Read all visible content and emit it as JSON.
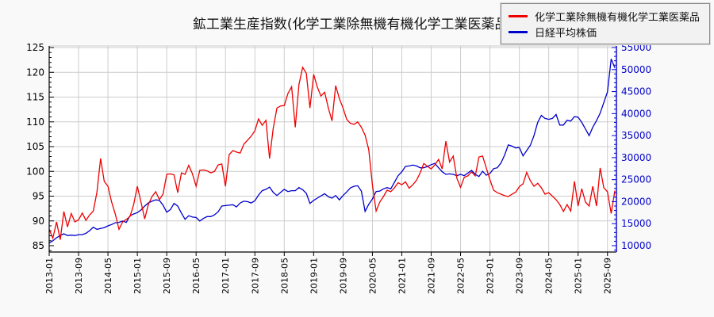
{
  "title": "鉱工業生産指数(化学工業除無機有機化学工業医薬品)",
  "legend": {
    "items": [
      {
        "label": "化学工業除無機有機化学工業医薬品",
        "color": "#ee0000"
      },
      {
        "label": "日経平均株価",
        "color": "#0000cc"
      }
    ]
  },
  "chart_data": {
    "type": "line",
    "x_interval": "monthly",
    "x_start": "2013-01",
    "x_end": "2025-11",
    "x_tick_every_months": 8,
    "x_tick_labels": [
      "2013-01",
      "2013-09",
      "2014-05",
      "2015-01",
      "2015-09",
      "2016-05",
      "2017-01",
      "2017-09",
      "2018-05",
      "2019-01",
      "2019-09",
      "2020-05",
      "2021-01",
      "2021-09",
      "2022-05",
      "2023-01",
      "2023-09",
      "2024-05",
      "2025-01",
      "2025-09"
    ],
    "left_axis": {
      "min": 85,
      "max": 125,
      "major_step": 5,
      "minor_step": 1,
      "ticks": [
        85,
        90,
        95,
        100,
        105,
        110,
        115,
        120,
        125
      ],
      "color": "#000000"
    },
    "right_axis": {
      "min": 10000,
      "max": 55000,
      "major_step": 5000,
      "minor_step": 1000,
      "ticks": [
        10000,
        15000,
        20000,
        25000,
        30000,
        35000,
        40000,
        45000,
        50000,
        55000
      ],
      "color": "#0000cc"
    },
    "grid": true,
    "grid_color": "#cccccc",
    "legend_position": "top-right",
    "series": [
      {
        "name": "化学工業除無機有機化学工業医薬品",
        "axis": "left",
        "color": "#ee0000",
        "values": [
          88.3,
          86.5,
          89.8,
          86.2,
          91.9,
          88.8,
          91.5,
          89.8,
          90.2,
          91.6,
          90.1,
          91.2,
          92.0,
          95.8,
          102.6,
          98.0,
          97.0,
          93.8,
          91.4,
          88.3,
          89.8,
          90.3,
          90.9,
          93.3,
          97.0,
          93.8,
          90.4,
          93.3,
          94.9,
          95.9,
          94.3,
          95.4,
          99.4,
          99.5,
          99.3,
          95.7,
          99.7,
          99.4,
          101.2,
          99.5,
          97.0,
          100.2,
          100.3,
          100.1,
          99.7,
          100.0,
          101.3,
          101.5,
          97.0,
          103.4,
          104.2,
          103.9,
          103.7,
          105.5,
          106.3,
          107.1,
          108.2,
          110.6,
          109.3,
          110.3,
          102.6,
          108.7,
          112.8,
          113.2,
          113.3,
          115.7,
          117.1,
          108.9,
          117.5,
          121.0,
          119.8,
          112.8,
          119.6,
          117.0,
          115.2,
          116.0,
          112.8,
          110.2,
          117.3,
          114.7,
          112.8,
          110.5,
          109.7,
          109.5,
          110.0,
          108.9,
          107.3,
          104.4,
          97.3,
          92.0,
          93.8,
          94.9,
          96.2,
          95.9,
          96.7,
          97.7,
          97.3,
          97.9,
          96.6,
          97.3,
          98.2,
          99.7,
          101.6,
          101.0,
          100.5,
          101.3,
          102.4,
          100.5,
          106.1,
          101.9,
          103.1,
          98.6,
          96.8,
          98.8,
          99.1,
          99.9,
          99.1,
          102.9,
          103.1,
          100.7,
          98.3,
          96.2,
          95.7,
          95.4,
          95.1,
          94.9,
          95.4,
          95.8,
          96.9,
          97.5,
          99.8,
          98.1,
          97.0,
          97.6,
          96.7,
          95.4,
          95.7,
          95.0,
          94.3,
          93.3,
          91.9,
          93.3,
          92.0,
          98.0,
          93.0,
          96.5,
          93.8,
          93.0,
          97.0,
          93.0,
          100.7,
          96.7,
          95.9,
          91.5,
          96.1
        ]
      },
      {
        "name": "日経平均株価",
        "axis": "right",
        "color": "#0000cc",
        "values": [
          10600,
          11100,
          11800,
          12300,
          12700,
          12300,
          12400,
          12300,
          12500,
          12500,
          12800,
          13400,
          14200,
          13700,
          13900,
          14100,
          14500,
          14800,
          15200,
          15300,
          15600,
          15300,
          16800,
          17200,
          17500,
          18100,
          19000,
          19700,
          20100,
          20400,
          20300,
          19200,
          17600,
          18200,
          19600,
          19000,
          17400,
          16000,
          16800,
          16500,
          16400,
          15600,
          16200,
          16600,
          16600,
          17000,
          17700,
          19000,
          19100,
          19200,
          19300,
          18800,
          19700,
          20100,
          20000,
          19700,
          20200,
          21500,
          22500,
          22800,
          23300,
          22100,
          21400,
          22100,
          22800,
          22300,
          22500,
          22500,
          23200,
          22700,
          21900,
          19600,
          20300,
          20800,
          21300,
          21800,
          21100,
          20800,
          21400,
          20400,
          21400,
          22200,
          23100,
          23500,
          23600,
          22400,
          17800,
          19400,
          20600,
          22300,
          22400,
          22900,
          23200,
          22900,
          24400,
          25900,
          26800,
          28000,
          28100,
          28300,
          28100,
          27700,
          27700,
          28000,
          28400,
          28700,
          27700,
          26800,
          26200,
          26300,
          26200,
          25900,
          26200,
          25900,
          26500,
          27100,
          26200,
          25700,
          26900,
          26000,
          26400,
          27500,
          27700,
          28800,
          30600,
          32900,
          32600,
          32200,
          32300,
          30400,
          31600,
          32800,
          35000,
          38000,
          39600,
          38900,
          38700,
          38900,
          39800,
          37400,
          37400,
          38500,
          38300,
          39300,
          39200,
          38000,
          36500,
          35000,
          36900,
          38400,
          40100,
          42500,
          44900,
          52400,
          50400
        ]
      }
    ]
  }
}
